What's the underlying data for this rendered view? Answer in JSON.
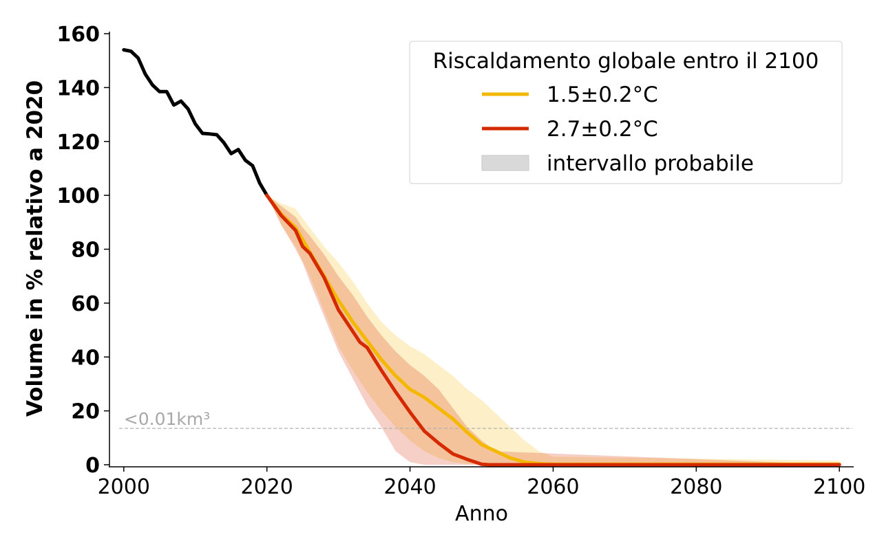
{
  "chart_data": {
    "type": "line",
    "title": "",
    "xlabel": "Anno",
    "ylabel": "Volume in % relativo a 2020",
    "xlim": [
      1998,
      2102
    ],
    "ylim": [
      0,
      160
    ],
    "x_ticks": [
      "2000",
      "2020",
      "2040",
      "2060",
      "2080",
      "2100"
    ],
    "y_ticks": [
      "0",
      "20",
      "40",
      "60",
      "80",
      "100",
      "120",
      "140",
      "160"
    ],
    "grid": false,
    "threshold": {
      "label": "<0.01km³",
      "y": 13.5,
      "color": "#b0b0b0"
    },
    "legend": {
      "title": "Riscaldamento globale entro il 2100",
      "position": "top-right",
      "entries": [
        {
          "label": "1.5±0.2°C",
          "kind": "line",
          "color": "#f5b800"
        },
        {
          "label": "2.7±0.2°C",
          "kind": "line",
          "color": "#d52a00"
        },
        {
          "label": "intervallo probabile",
          "kind": "band",
          "color": "#d9d9d9"
        }
      ]
    },
    "series": [
      {
        "name": "",
        "color": "#000000",
        "x": [
          2000,
          2001,
          2002,
          2003,
          2004,
          2005,
          2006,
          2007,
          2008,
          2009,
          2010,
          2011,
          2012,
          2013,
          2014,
          2015,
          2016,
          2017,
          2018,
          2019,
          2020
        ],
        "y": [
          154,
          153.5,
          151,
          145,
          141,
          138.5,
          138.5,
          133.5,
          135,
          132,
          126.5,
          123,
          122.8,
          122.5,
          119.5,
          115.5,
          117,
          113,
          111,
          104.5,
          100
        ]
      },
      {
        "name": "1.5±0.2°C",
        "color": "#f5b800",
        "x": [
          2020,
          2022,
          2024,
          2026,
          2028,
          2030,
          2032,
          2034,
          2036,
          2038,
          2040,
          2042,
          2044,
          2046,
          2048,
          2050,
          2052,
          2054,
          2056,
          2058,
          2060,
          2100
        ],
        "y": [
          100,
          93,
          88,
          79,
          70,
          61,
          53,
          46,
          39,
          33,
          28,
          25,
          21,
          17,
          12,
          7.5,
          5,
          2.5,
          1,
          0.4,
          0.2,
          0.2
        ],
        "band_lower": [
          100,
          89,
          81,
          70,
          57,
          44,
          35,
          27,
          20,
          14,
          9,
          5,
          2.5,
          1,
          0.3,
          0.1,
          0,
          0,
          0,
          0,
          0,
          0
        ],
        "band_upper": [
          100,
          97,
          95,
          88,
          81,
          75,
          68,
          60,
          53,
          48,
          44,
          41,
          37,
          33,
          28,
          24,
          19,
          14,
          9,
          5,
          3,
          1.5
        ]
      },
      {
        "name": "2.7±0.2°C",
        "color": "#d52a00",
        "x": [
          2020,
          2022,
          2024,
          2025,
          2026,
          2028,
          2030,
          2032,
          2033,
          2034,
          2036,
          2038,
          2040,
          2042,
          2044,
          2046,
          2048,
          2050,
          2051,
          2052,
          2100
        ],
        "y": [
          100,
          92.5,
          87,
          81,
          78.5,
          69.5,
          57.5,
          49.5,
          45.5,
          43.5,
          35,
          27,
          19.5,
          12.5,
          8,
          4,
          2,
          0.2,
          0,
          0,
          0
        ],
        "band_lower": [
          100,
          89,
          80,
          75,
          68,
          55,
          42,
          32,
          27,
          22,
          14,
          5,
          1,
          0,
          0,
          0,
          0,
          0,
          0,
          0,
          0
        ],
        "band_upper": [
          100,
          96,
          92,
          88,
          85,
          78,
          70,
          63,
          59,
          55,
          48,
          42,
          37,
          33,
          28,
          21,
          14,
          9,
          7,
          5,
          0
        ]
      }
    ]
  }
}
